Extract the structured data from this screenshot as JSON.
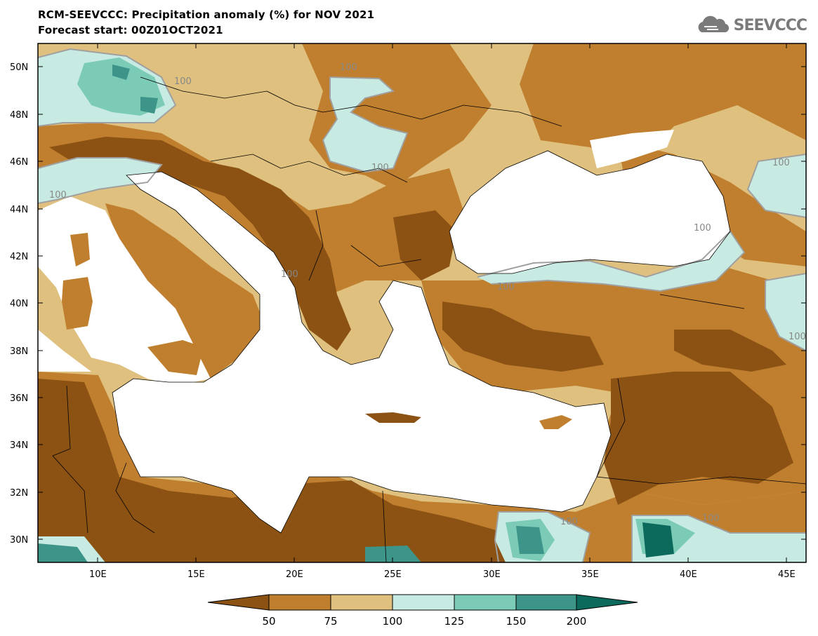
{
  "header": {
    "title_line1": "RCM-SEEVCCC: Precipitation anomaly (%) for NOV 2021",
    "title_line2": "Forecast start: 00Z01OCT2021",
    "logo_text": "SEEVCCC"
  },
  "map": {
    "lat_ticks": [
      "50N",
      "48N",
      "46N",
      "44N",
      "42N",
      "40N",
      "38N",
      "36N",
      "34N",
      "32N",
      "30N"
    ],
    "lon_ticks": [
      "10E",
      "15E",
      "20E",
      "25E",
      "30E",
      "35E",
      "40E",
      "45E"
    ],
    "contour_labels": [
      "100",
      "100",
      "100",
      "100",
      "100",
      "100",
      "100",
      "100",
      "100",
      "100",
      "100"
    ]
  },
  "colorbar": {
    "labels": [
      "50",
      "75",
      "100",
      "125",
      "150",
      "200"
    ],
    "colors": [
      "#8b5214",
      "#bf7f2e",
      "#dfc07f",
      "#c7ebe2",
      "#7ccbb7",
      "#3d9488",
      "#0b6a5c"
    ]
  },
  "colors": {
    "very_dry": "#8b5214",
    "dry": "#bf7f2e",
    "slightly_dry": "#dfc07f",
    "slightly_wet": "#c7ebe2",
    "wet": "#7ccbb7",
    "very_wet": "#3d9488",
    "sea": "#ffffff"
  }
}
